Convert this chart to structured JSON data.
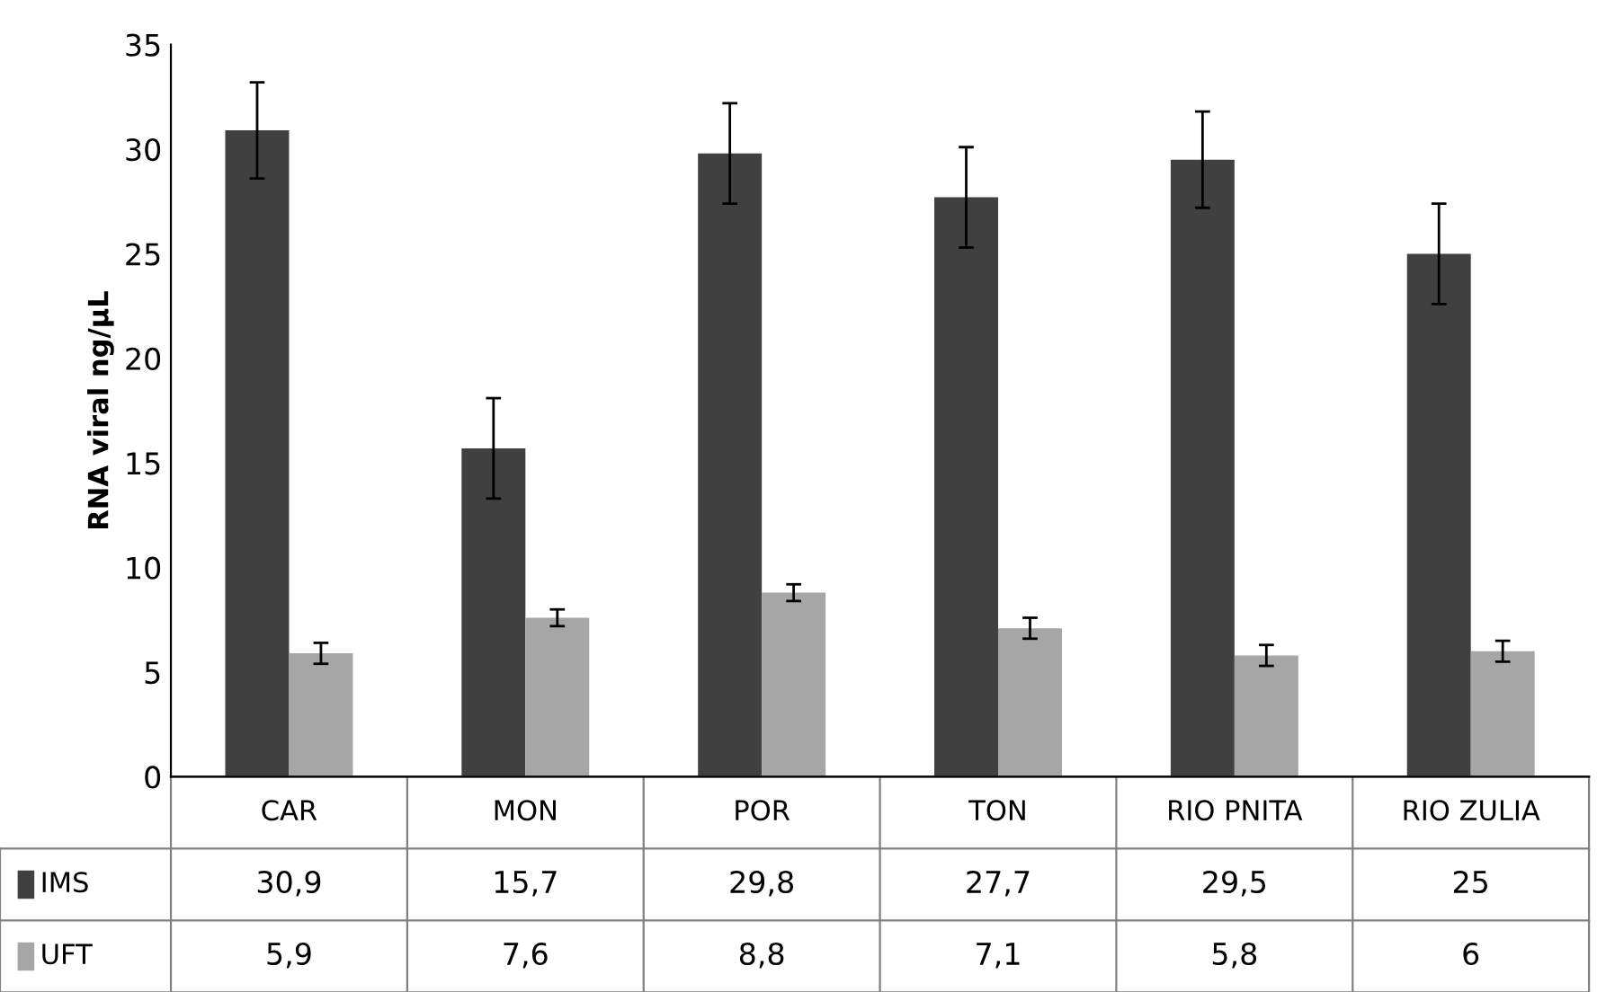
{
  "chart_data": {
    "type": "bar",
    "ylabel": "RNA viral ng/µL",
    "categories": [
      "CAR",
      "MON",
      "POR",
      "TON",
      "RIO PNITA",
      "RIO ZULIA"
    ],
    "series": [
      {
        "name": "IMS",
        "color": "#404040",
        "values": [
          30.9,
          15.7,
          29.8,
          27.7,
          29.5,
          25
        ],
        "errors": [
          2.3,
          2.4,
          2.4,
          2.4,
          2.3,
          2.4
        ],
        "value_labels": [
          "30,9",
          "15,7",
          "29,8",
          "27,7",
          "29,5",
          "25"
        ]
      },
      {
        "name": "UFT",
        "color": "#a6a6a6",
        "values": [
          5.9,
          7.6,
          8.8,
          7.1,
          5.8,
          6
        ],
        "errors": [
          0.5,
          0.4,
          0.4,
          0.5,
          0.5,
          0.5
        ],
        "value_labels": [
          "5,9",
          "7,6",
          "8,8",
          "7,1",
          "5,8",
          "6"
        ]
      }
    ],
    "ylim": [
      0,
      35
    ],
    "yticks": [
      0,
      5,
      10,
      15,
      20,
      25,
      30,
      35
    ],
    "grid": false,
    "legend": "bottom"
  }
}
